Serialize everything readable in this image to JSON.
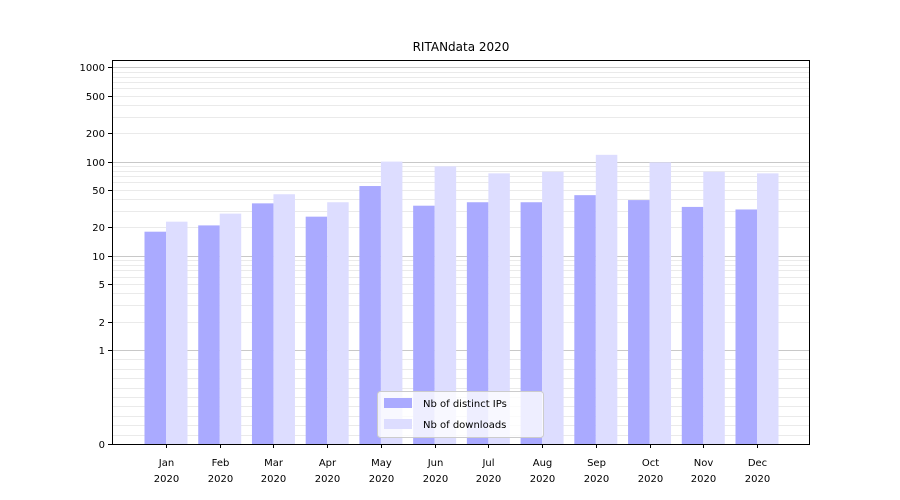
{
  "chart_data": {
    "type": "bar",
    "title": "RITANdata 2020",
    "xlabel": "",
    "ylabel": "",
    "yscale": "symlog",
    "ylim": [
      0,
      1200
    ],
    "y_ticks": [
      "0",
      "1",
      "2",
      "5",
      "10",
      "20",
      "50",
      "100",
      "200",
      "500",
      "1000"
    ],
    "grid": "horizontal",
    "legend_position": "bottom-center",
    "categories": [
      [
        "Jan",
        "2020"
      ],
      [
        "Feb",
        "2020"
      ],
      [
        "Mar",
        "2020"
      ],
      [
        "Apr",
        "2020"
      ],
      [
        "May",
        "2020"
      ],
      [
        "Jun",
        "2020"
      ],
      [
        "Jul",
        "2020"
      ],
      [
        "Aug",
        "2020"
      ],
      [
        "Sep",
        "2020"
      ],
      [
        "Oct",
        "2020"
      ],
      [
        "Nov",
        "2020"
      ],
      [
        "Dec",
        "2020"
      ]
    ],
    "series": [
      {
        "name": "Nb of distinct IPs",
        "color": "#aaaaff",
        "values": [
          18,
          21,
          36,
          26,
          55,
          34,
          37,
          37,
          44,
          39,
          33,
          31
        ]
      },
      {
        "name": "Nb of downloads",
        "color": "#ddddff",
        "values": [
          23,
          28,
          45,
          37,
          100,
          89,
          75,
          78,
          118,
          98,
          78,
          75
        ]
      }
    ]
  }
}
